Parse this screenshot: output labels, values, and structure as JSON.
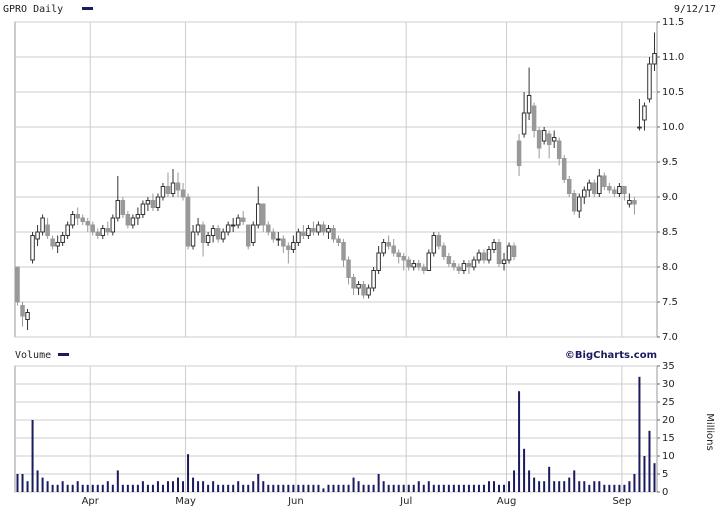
{
  "chart_data": {
    "type": "candlestick",
    "title": "GPRO Daily",
    "date": "9/12/17",
    "source": "©BigCharts.com",
    "up_color": "#ffffff",
    "down_color": "#999999",
    "outline_color": "#333333",
    "grid": true,
    "categories": [
      null,
      null,
      null,
      null,
      null,
      null,
      null,
      null,
      null,
      null,
      null,
      null,
      null,
      null,
      null,
      "Apr",
      null,
      null,
      null,
      null,
      null,
      null,
      null,
      null,
      null,
      null,
      null,
      null,
      null,
      null,
      null,
      null,
      null,
      null,
      "May",
      null,
      null,
      null,
      null,
      null,
      null,
      null,
      null,
      null,
      null,
      null,
      null,
      null,
      null,
      null,
      null,
      null,
      null,
      null,
      null,
      null,
      "Jun",
      null,
      null,
      null,
      null,
      null,
      null,
      null,
      null,
      null,
      null,
      null,
      null,
      null,
      null,
      null,
      null,
      null,
      null,
      null,
      null,
      null,
      "Jul",
      null,
      null,
      null,
      null,
      null,
      null,
      null,
      null,
      null,
      null,
      null,
      null,
      null,
      null,
      null,
      null,
      null,
      null,
      null,
      "Aug",
      null,
      null,
      null,
      null,
      null,
      null,
      null,
      null,
      null,
      null,
      null,
      null,
      null,
      null,
      null,
      null,
      null,
      null,
      null,
      null,
      null,
      null,
      "Sep",
      null,
      null,
      null,
      null,
      null,
      null
    ],
    "open": [
      8.0,
      7.45,
      7.25,
      8.1,
      8.4,
      8.5,
      8.6,
      8.4,
      8.3,
      8.35,
      8.45,
      8.6,
      8.75,
      8.7,
      8.65,
      8.6,
      8.5,
      8.45,
      8.55,
      8.5,
      8.7,
      8.95,
      8.75,
      8.6,
      8.7,
      8.75,
      8.9,
      8.95,
      8.85,
      9.0,
      9.15,
      9.05,
      9.2,
      9.1,
      9.0,
      8.3,
      8.5,
      8.6,
      8.35,
      8.45,
      8.55,
      8.4,
      8.5,
      8.6,
      8.6,
      8.7,
      8.6,
      8.35,
      8.6,
      8.9,
      8.6,
      8.5,
      8.4,
      8.4,
      8.3,
      8.25,
      8.35,
      8.5,
      8.45,
      8.55,
      8.5,
      8.6,
      8.5,
      8.55,
      8.4,
      8.35,
      8.1,
      7.85,
      7.7,
      7.75,
      7.6,
      7.7,
      7.95,
      8.2,
      8.35,
      8.3,
      8.2,
      8.15,
      8.1,
      8.0,
      8.05,
      8.0,
      7.95,
      8.2,
      8.45,
      8.3,
      8.15,
      8.05,
      8.0,
      7.95,
      8.05,
      8.0,
      8.1,
      8.2,
      8.1,
      8.25,
      8.35,
      8.05,
      8.1,
      8.3,
      9.8,
      9.9,
      10.2,
      10.3,
      9.95,
      9.8,
      9.9,
      9.8,
      9.8,
      9.55,
      9.25,
      9.05,
      8.8,
      9.0,
      9.1,
      9.2,
      9.05,
      9.3,
      9.15,
      9.1,
      9.05,
      9.15,
      8.9,
      8.95,
      10.0,
      10.1,
      10.4,
      10.9
    ],
    "high": [
      8.0,
      7.5,
      7.4,
      8.5,
      8.6,
      8.75,
      8.7,
      8.45,
      8.45,
      8.5,
      8.65,
      8.8,
      8.85,
      8.75,
      8.7,
      8.65,
      8.55,
      8.6,
      8.65,
      8.75,
      9.3,
      9.0,
      8.8,
      8.75,
      8.85,
      8.95,
      9.0,
      9.05,
      9.05,
      9.2,
      9.35,
      9.4,
      9.35,
      9.2,
      9.05,
      8.6,
      8.7,
      8.65,
      8.5,
      8.6,
      8.6,
      8.55,
      8.65,
      8.7,
      8.75,
      8.8,
      8.6,
      8.65,
      9.15,
      8.9,
      8.65,
      8.55,
      8.5,
      8.45,
      8.35,
      8.45,
      8.55,
      8.6,
      8.6,
      8.65,
      8.65,
      8.65,
      8.6,
      8.6,
      8.45,
      8.4,
      8.15,
      7.9,
      7.8,
      7.8,
      7.75,
      8.0,
      8.3,
      8.4,
      8.45,
      8.4,
      8.25,
      8.2,
      8.15,
      8.1,
      8.1,
      8.05,
      8.25,
      8.5,
      8.5,
      8.35,
      8.2,
      8.1,
      8.05,
      8.1,
      8.1,
      8.15,
      8.25,
      8.25,
      8.3,
      8.4,
      8.4,
      8.2,
      8.35,
      8.35,
      9.9,
      10.5,
      10.85,
      10.35,
      10.0,
      10.0,
      9.95,
      9.95,
      9.85,
      9.6,
      9.3,
      9.1,
      9.05,
      9.15,
      9.25,
      9.25,
      9.4,
      9.35,
      9.2,
      9.15,
      9.2,
      9.15,
      9.05,
      9.0,
      10.4,
      10.35,
      11.0,
      11.35
    ],
    "low": [
      7.45,
      7.15,
      7.1,
      8.05,
      8.3,
      8.45,
      8.4,
      8.25,
      8.2,
      8.3,
      8.4,
      8.55,
      8.6,
      8.6,
      8.5,
      8.45,
      8.4,
      8.4,
      8.45,
      8.45,
      8.65,
      8.7,
      8.55,
      8.55,
      8.6,
      8.7,
      8.8,
      8.8,
      8.8,
      8.95,
      9.0,
      9.0,
      9.0,
      8.95,
      8.25,
      8.25,
      8.45,
      8.15,
      8.3,
      8.35,
      8.35,
      8.35,
      8.45,
      8.5,
      8.55,
      8.6,
      8.25,
      8.3,
      8.55,
      8.5,
      8.45,
      8.35,
      8.3,
      8.2,
      8.05,
      8.2,
      8.3,
      8.4,
      8.4,
      8.45,
      8.45,
      8.45,
      8.4,
      8.35,
      8.3,
      8.0,
      7.75,
      7.6,
      7.6,
      7.55,
      7.55,
      7.65,
      7.9,
      8.15,
      8.25,
      8.15,
      8.05,
      7.95,
      7.95,
      7.95,
      7.95,
      7.9,
      7.95,
      8.15,
      8.25,
      8.1,
      8.0,
      7.95,
      7.9,
      7.9,
      7.9,
      7.95,
      8.05,
      8.05,
      8.05,
      8.2,
      8.0,
      7.95,
      8.05,
      8.1,
      9.3,
      9.85,
      10.1,
      9.85,
      9.55,
      9.75,
      9.55,
      9.7,
      9.45,
      9.2,
      9.0,
      8.75,
      8.7,
      8.9,
      9.0,
      9.0,
      9.0,
      9.1,
      9.05,
      9.0,
      9.0,
      8.95,
      8.85,
      8.75,
      9.95,
      9.95,
      10.35,
      10.8
    ],
    "close": [
      7.5,
      7.3,
      7.35,
      8.45,
      8.5,
      8.7,
      8.45,
      8.3,
      8.35,
      8.45,
      8.6,
      8.75,
      8.7,
      8.65,
      8.6,
      8.5,
      8.45,
      8.55,
      8.5,
      8.7,
      8.95,
      8.75,
      8.6,
      8.7,
      8.75,
      8.9,
      8.95,
      8.85,
      9.0,
      9.15,
      9.05,
      9.2,
      9.1,
      9.0,
      8.3,
      8.5,
      8.6,
      8.35,
      8.45,
      8.55,
      8.4,
      8.5,
      8.6,
      8.6,
      8.7,
      8.65,
      8.3,
      8.6,
      8.9,
      8.6,
      8.5,
      8.4,
      8.4,
      8.3,
      8.25,
      8.35,
      8.5,
      8.45,
      8.55,
      8.5,
      8.6,
      8.5,
      8.55,
      8.4,
      8.35,
      8.1,
      7.85,
      7.7,
      7.75,
      7.6,
      7.7,
      7.95,
      8.2,
      8.35,
      8.3,
      8.2,
      8.15,
      8.1,
      8.0,
      8.05,
      8.0,
      7.95,
      8.2,
      8.45,
      8.3,
      8.15,
      8.05,
      8.0,
      7.95,
      8.05,
      8.0,
      8.1,
      8.2,
      8.1,
      8.25,
      8.35,
      8.05,
      8.1,
      8.3,
      8.15,
      9.45,
      10.2,
      10.45,
      9.95,
      9.7,
      9.95,
      9.75,
      9.85,
      9.55,
      9.25,
      9.05,
      8.8,
      9.0,
      9.1,
      9.2,
      9.05,
      9.3,
      9.15,
      9.1,
      9.05,
      9.15,
      9.05,
      8.95,
      8.9,
      10.0,
      10.3,
      10.9,
      11.05
    ],
    "ylim": [
      7,
      11.5
    ],
    "yticks": [
      {
        "value": 7,
        "label": "7.0"
      },
      7.5,
      {
        "value": 8,
        "label": "8.0"
      },
      8.5,
      {
        "value": 9,
        "label": "9.0"
      },
      9.5,
      {
        "value": 10,
        "label": "10.0"
      },
      10.5,
      {
        "value": 11,
        "label": "11.0"
      },
      11.5
    ],
    "volume": {
      "title": "Volume",
      "ylabel": "Millions",
      "color": "#1a1a5e",
      "values": [
        5,
        5,
        3,
        20,
        6,
        4,
        3,
        2,
        2,
        3,
        2,
        2,
        3,
        2,
        2,
        2,
        2,
        2,
        3,
        2,
        6,
        2,
        2,
        2,
        2,
        3,
        2,
        2,
        3,
        2,
        3,
        3,
        4,
        3,
        10.5,
        4,
        3,
        3,
        2,
        3,
        2,
        2,
        2,
        2,
        3,
        2,
        2,
        3,
        5,
        3,
        2,
        2,
        2,
        2,
        2,
        2,
        2,
        2,
        2,
        2,
        2,
        1,
        2,
        2,
        2,
        2,
        2,
        4,
        3,
        2,
        2,
        2,
        5,
        3,
        2,
        2,
        2,
        2,
        2,
        2,
        3,
        2,
        3,
        2,
        2,
        2,
        2,
        2,
        2,
        2,
        2,
        2,
        2,
        2,
        3,
        3,
        2,
        2,
        3,
        6,
        28,
        12,
        6,
        4,
        3,
        3,
        7,
        3,
        3,
        3,
        4,
        6,
        3,
        3,
        2,
        3,
        3,
        2,
        2,
        2,
        2,
        2,
        3,
        5,
        32,
        10,
        17,
        8
      ],
      "ylim": [
        0,
        35
      ],
      "yticks": [
        0,
        5,
        10,
        15,
        20,
        25,
        30,
        35
      ]
    }
  }
}
